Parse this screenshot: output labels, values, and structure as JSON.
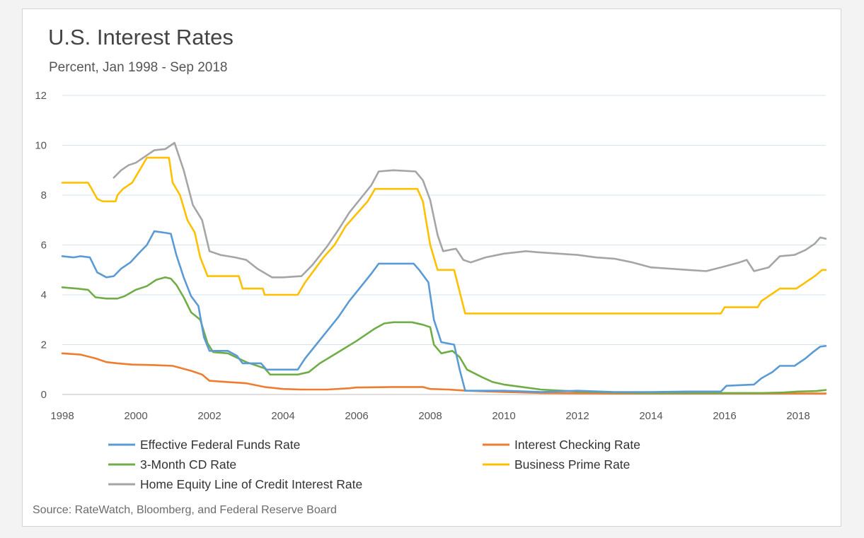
{
  "chart_data": {
    "type": "line",
    "title": "U.S. Interest Rates",
    "subtitle": "Percent, Jan 1998 - Sep 2018",
    "source": "Source: RateWatch, Bloomberg, and Federal Reserve Board",
    "xlabel": "",
    "ylabel": "",
    "xlim": [
      1998,
      2018.75
    ],
    "ylim": [
      0,
      12
    ],
    "x_ticks": [
      1998,
      2000,
      2002,
      2004,
      2006,
      2008,
      2010,
      2012,
      2014,
      2016,
      2018
    ],
    "y_ticks": [
      0,
      2,
      4,
      6,
      8,
      10,
      12
    ],
    "grid": "horizontal",
    "legend_position": "bottom",
    "series": [
      {
        "name": "Effective Federal Funds Rate",
        "color": "#5b9bd5",
        "points": [
          [
            1998.0,
            5.55
          ],
          [
            1998.3,
            5.5
          ],
          [
            1998.5,
            5.55
          ],
          [
            1998.75,
            5.5
          ],
          [
            1998.95,
            4.9
          ],
          [
            1999.2,
            4.7
          ],
          [
            1999.4,
            4.75
          ],
          [
            1999.6,
            5.05
          ],
          [
            1999.85,
            5.3
          ],
          [
            2000.1,
            5.7
          ],
          [
            2000.3,
            6.0
          ],
          [
            2000.5,
            6.55
          ],
          [
            2000.75,
            6.5
          ],
          [
            2000.95,
            6.45
          ],
          [
            2001.1,
            5.6
          ],
          [
            2001.3,
            4.7
          ],
          [
            2001.5,
            3.95
          ],
          [
            2001.7,
            3.55
          ],
          [
            2001.85,
            2.3
          ],
          [
            2002.0,
            1.75
          ],
          [
            2002.5,
            1.75
          ],
          [
            2002.75,
            1.55
          ],
          [
            2002.9,
            1.25
          ],
          [
            2003.4,
            1.25
          ],
          [
            2003.55,
            1.0
          ],
          [
            2004.0,
            1.0
          ],
          [
            2004.4,
            1.0
          ],
          [
            2004.6,
            1.45
          ],
          [
            2004.9,
            2.0
          ],
          [
            2005.2,
            2.55
          ],
          [
            2005.5,
            3.1
          ],
          [
            2005.8,
            3.75
          ],
          [
            2006.1,
            4.3
          ],
          [
            2006.4,
            4.85
          ],
          [
            2006.6,
            5.25
          ],
          [
            2007.0,
            5.25
          ],
          [
            2007.55,
            5.25
          ],
          [
            2007.7,
            5.0
          ],
          [
            2007.95,
            4.5
          ],
          [
            2008.1,
            3.0
          ],
          [
            2008.3,
            2.1
          ],
          [
            2008.65,
            2.0
          ],
          [
            2008.8,
            1.0
          ],
          [
            2008.95,
            0.15
          ],
          [
            2009.5,
            0.15
          ],
          [
            2010.0,
            0.15
          ],
          [
            2011.0,
            0.1
          ],
          [
            2012.0,
            0.15
          ],
          [
            2013.0,
            0.1
          ],
          [
            2014.0,
            0.1
          ],
          [
            2015.0,
            0.12
          ],
          [
            2015.9,
            0.12
          ],
          [
            2016.05,
            0.35
          ],
          [
            2016.8,
            0.4
          ],
          [
            2017.0,
            0.65
          ],
          [
            2017.3,
            0.9
          ],
          [
            2017.5,
            1.15
          ],
          [
            2017.9,
            1.15
          ],
          [
            2018.2,
            1.45
          ],
          [
            2018.4,
            1.7
          ],
          [
            2018.6,
            1.92
          ],
          [
            2018.75,
            1.95
          ]
        ]
      },
      {
        "name": "Interest Checking Rate",
        "color": "#ed7d31",
        "points": [
          [
            1998.0,
            1.65
          ],
          [
            1998.5,
            1.6
          ],
          [
            1998.9,
            1.45
          ],
          [
            1999.2,
            1.3
          ],
          [
            1999.5,
            1.25
          ],
          [
            1999.9,
            1.2
          ],
          [
            2000.5,
            1.18
          ],
          [
            2001.0,
            1.15
          ],
          [
            2001.5,
            0.95
          ],
          [
            2001.8,
            0.8
          ],
          [
            2002.0,
            0.55
          ],
          [
            2002.5,
            0.5
          ],
          [
            2003.0,
            0.45
          ],
          [
            2003.5,
            0.3
          ],
          [
            2004.0,
            0.22
          ],
          [
            2004.5,
            0.2
          ],
          [
            2005.2,
            0.2
          ],
          [
            2005.8,
            0.25
          ],
          [
            2006.0,
            0.28
          ],
          [
            2007.0,
            0.3
          ],
          [
            2007.6,
            0.3
          ],
          [
            2007.8,
            0.3
          ],
          [
            2008.0,
            0.22
          ],
          [
            2008.5,
            0.2
          ],
          [
            2009.0,
            0.15
          ],
          [
            2010.0,
            0.1
          ],
          [
            2011.0,
            0.06
          ],
          [
            2012.0,
            0.05
          ],
          [
            2013.0,
            0.04
          ],
          [
            2014.0,
            0.04
          ],
          [
            2015.0,
            0.04
          ],
          [
            2016.0,
            0.04
          ],
          [
            2017.0,
            0.04
          ],
          [
            2018.0,
            0.04
          ],
          [
            2018.75,
            0.04
          ]
        ]
      },
      {
        "name": "3-Month CD Rate",
        "color": "#70ad47",
        "points": [
          [
            1998.0,
            4.3
          ],
          [
            1998.4,
            4.25
          ],
          [
            1998.7,
            4.2
          ],
          [
            1998.9,
            3.9
          ],
          [
            1999.2,
            3.85
          ],
          [
            1999.5,
            3.85
          ],
          [
            1999.7,
            3.95
          ],
          [
            2000.0,
            4.2
          ],
          [
            2000.3,
            4.35
          ],
          [
            2000.55,
            4.6
          ],
          [
            2000.8,
            4.7
          ],
          [
            2000.95,
            4.65
          ],
          [
            2001.1,
            4.4
          ],
          [
            2001.3,
            3.9
          ],
          [
            2001.5,
            3.3
          ],
          [
            2001.75,
            3.0
          ],
          [
            2001.95,
            2.05
          ],
          [
            2002.1,
            1.7
          ],
          [
            2002.5,
            1.65
          ],
          [
            2003.0,
            1.3
          ],
          [
            2003.5,
            1.05
          ],
          [
            2003.65,
            0.8
          ],
          [
            2004.4,
            0.8
          ],
          [
            2004.7,
            0.9
          ],
          [
            2005.0,
            1.25
          ],
          [
            2005.5,
            1.7
          ],
          [
            2006.0,
            2.15
          ],
          [
            2006.5,
            2.65
          ],
          [
            2006.75,
            2.85
          ],
          [
            2007.0,
            2.9
          ],
          [
            2007.5,
            2.9
          ],
          [
            2007.8,
            2.8
          ],
          [
            2008.0,
            2.7
          ],
          [
            2008.1,
            2.0
          ],
          [
            2008.3,
            1.65
          ],
          [
            2008.6,
            1.75
          ],
          [
            2008.8,
            1.5
          ],
          [
            2009.0,
            1.0
          ],
          [
            2009.4,
            0.7
          ],
          [
            2009.7,
            0.5
          ],
          [
            2010.0,
            0.4
          ],
          [
            2010.5,
            0.3
          ],
          [
            2011.0,
            0.2
          ],
          [
            2012.0,
            0.12
          ],
          [
            2013.0,
            0.08
          ],
          [
            2014.0,
            0.06
          ],
          [
            2015.0,
            0.06
          ],
          [
            2016.0,
            0.06
          ],
          [
            2017.0,
            0.06
          ],
          [
            2017.6,
            0.08
          ],
          [
            2018.0,
            0.12
          ],
          [
            2018.5,
            0.14
          ],
          [
            2018.75,
            0.18
          ]
        ]
      },
      {
        "name": "Business Prime Rate",
        "color": "#ffc000",
        "points": [
          [
            1998.0,
            8.5
          ],
          [
            1998.7,
            8.5
          ],
          [
            1998.8,
            8.25
          ],
          [
            1998.95,
            7.85
          ],
          [
            1999.1,
            7.75
          ],
          [
            1999.45,
            7.75
          ],
          [
            1999.5,
            8.0
          ],
          [
            1999.65,
            8.25
          ],
          [
            1999.9,
            8.5
          ],
          [
            2000.1,
            9.0
          ],
          [
            2000.3,
            9.5
          ],
          [
            2000.9,
            9.5
          ],
          [
            2001.0,
            8.5
          ],
          [
            2001.2,
            8.0
          ],
          [
            2001.4,
            7.0
          ],
          [
            2001.6,
            6.5
          ],
          [
            2001.75,
            5.5
          ],
          [
            2001.95,
            4.75
          ],
          [
            2002.8,
            4.75
          ],
          [
            2002.9,
            4.25
          ],
          [
            2003.45,
            4.25
          ],
          [
            2003.5,
            4.0
          ],
          [
            2004.4,
            4.0
          ],
          [
            2004.6,
            4.5
          ],
          [
            2004.85,
            5.0
          ],
          [
            2005.1,
            5.5
          ],
          [
            2005.4,
            6.0
          ],
          [
            2005.7,
            6.75
          ],
          [
            2006.0,
            7.25
          ],
          [
            2006.3,
            7.75
          ],
          [
            2006.5,
            8.25
          ],
          [
            2007.65,
            8.25
          ],
          [
            2007.8,
            7.75
          ],
          [
            2008.0,
            6.0
          ],
          [
            2008.2,
            5.0
          ],
          [
            2008.65,
            5.0
          ],
          [
            2008.95,
            3.25
          ],
          [
            2010.0,
            3.25
          ],
          [
            2012.0,
            3.25
          ],
          [
            2014.0,
            3.25
          ],
          [
            2015.9,
            3.25
          ],
          [
            2016.0,
            3.5
          ],
          [
            2016.9,
            3.5
          ],
          [
            2017.0,
            3.75
          ],
          [
            2017.25,
            4.0
          ],
          [
            2017.5,
            4.25
          ],
          [
            2017.95,
            4.25
          ],
          [
            2018.2,
            4.5
          ],
          [
            2018.45,
            4.75
          ],
          [
            2018.65,
            5.0
          ],
          [
            2018.75,
            5.0
          ]
        ]
      },
      {
        "name": "Home Equity Line of Credit Interest Rate",
        "color": "#a5a5a5",
        "points": [
          [
            1999.4,
            8.7
          ],
          [
            1999.6,
            9.0
          ],
          [
            1999.8,
            9.2
          ],
          [
            2000.0,
            9.3
          ],
          [
            2000.3,
            9.6
          ],
          [
            2000.5,
            9.8
          ],
          [
            2000.8,
            9.85
          ],
          [
            2001.05,
            10.1
          ],
          [
            2001.3,
            9.0
          ],
          [
            2001.55,
            7.6
          ],
          [
            2001.8,
            7.0
          ],
          [
            2002.0,
            5.75
          ],
          [
            2002.3,
            5.6
          ],
          [
            2002.7,
            5.5
          ],
          [
            2003.0,
            5.4
          ],
          [
            2003.3,
            5.05
          ],
          [
            2003.7,
            4.7
          ],
          [
            2004.0,
            4.7
          ],
          [
            2004.5,
            4.75
          ],
          [
            2004.8,
            5.2
          ],
          [
            2005.2,
            5.95
          ],
          [
            2005.5,
            6.6
          ],
          [
            2005.8,
            7.3
          ],
          [
            2006.1,
            7.85
          ],
          [
            2006.4,
            8.4
          ],
          [
            2006.6,
            8.95
          ],
          [
            2007.0,
            9.0
          ],
          [
            2007.6,
            8.95
          ],
          [
            2007.8,
            8.6
          ],
          [
            2008.0,
            7.8
          ],
          [
            2008.2,
            6.4
          ],
          [
            2008.35,
            5.75
          ],
          [
            2008.7,
            5.85
          ],
          [
            2008.9,
            5.4
          ],
          [
            2009.1,
            5.3
          ],
          [
            2009.5,
            5.5
          ],
          [
            2010.0,
            5.65
          ],
          [
            2010.6,
            5.75
          ],
          [
            2011.0,
            5.7
          ],
          [
            2012.0,
            5.6
          ],
          [
            2012.5,
            5.5
          ],
          [
            2013.0,
            5.45
          ],
          [
            2013.5,
            5.3
          ],
          [
            2014.0,
            5.1
          ],
          [
            2014.5,
            5.05
          ],
          [
            2015.0,
            5.0
          ],
          [
            2015.5,
            4.95
          ],
          [
            2015.9,
            5.1
          ],
          [
            2016.4,
            5.3
          ],
          [
            2016.6,
            5.4
          ],
          [
            2016.8,
            4.95
          ],
          [
            2017.2,
            5.1
          ],
          [
            2017.5,
            5.55
          ],
          [
            2017.9,
            5.6
          ],
          [
            2018.2,
            5.8
          ],
          [
            2018.45,
            6.05
          ],
          [
            2018.6,
            6.3
          ],
          [
            2018.75,
            6.25
          ]
        ]
      }
    ]
  }
}
